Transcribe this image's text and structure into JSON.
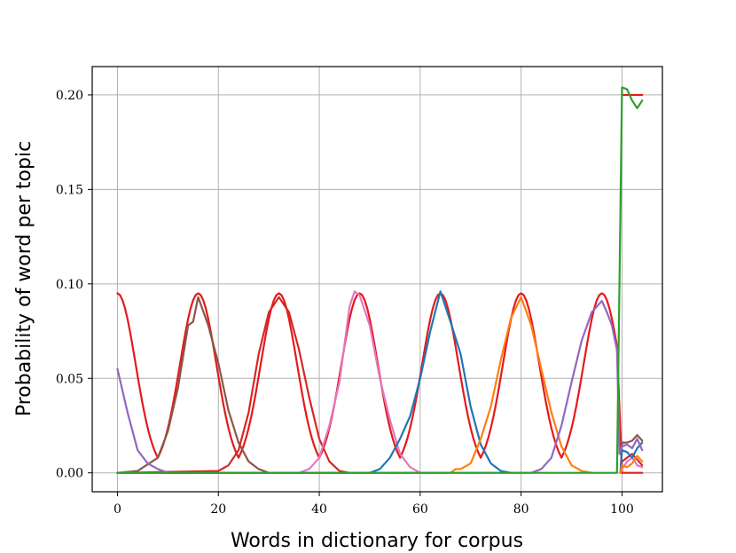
{
  "chart_data": {
    "type": "line",
    "title": "",
    "xlabel": "Words in dictionary for corpus",
    "ylabel": "Probability of word per topic",
    "xlim": [
      -5,
      108
    ],
    "ylim": [
      -0.01,
      0.215
    ],
    "xticks": [
      0,
      20,
      40,
      60,
      80,
      100
    ],
    "xtick_labels": [
      "0",
      "20",
      "40",
      "60",
      "80",
      "100"
    ],
    "yticks": [
      0.0,
      0.05,
      0.1,
      0.15,
      0.2
    ],
    "ytick_labels": [
      "0.00",
      "0.05",
      "0.10",
      "0.15",
      "0.20"
    ],
    "grid": true,
    "legend": "none",
    "x_range": [
      0,
      104
    ],
    "series": [
      {
        "color": "#e41a1c",
        "kind": "true-topic-mixture",
        "centers": [
          0,
          16,
          32,
          48,
          64,
          80,
          96
        ],
        "amplitude": 0.095,
        "sigma": 3.6,
        "tail_value": 0.2,
        "tail_range": [
          100,
          104
        ]
      },
      {
        "color": "#8c564b",
        "kind": "learned-topic",
        "peak_x": 16,
        "peak_y": 0.093,
        "points": [
          [
            0,
            0
          ],
          [
            4,
            0.001
          ],
          [
            8,
            0.008
          ],
          [
            10,
            0.022
          ],
          [
            12,
            0.045
          ],
          [
            14,
            0.078
          ],
          [
            15,
            0.08
          ],
          [
            16,
            0.093
          ],
          [
            18,
            0.078
          ],
          [
            20,
            0.058
          ],
          [
            22,
            0.033
          ],
          [
            24,
            0.016
          ],
          [
            26,
            0.006
          ],
          [
            28,
            0.002
          ],
          [
            30,
            0
          ],
          [
            104,
            0
          ]
        ],
        "tail": [
          [
            100,
            0.016
          ],
          [
            101,
            0.016
          ],
          [
            102,
            0.017
          ],
          [
            103,
            0.02
          ],
          [
            104,
            0.017
          ]
        ]
      },
      {
        "color": "#d62728",
        "kind": "learned-topic",
        "peak_x": 32,
        "peak_y": 0.093,
        "points": [
          [
            0,
            0
          ],
          [
            20,
            0.001
          ],
          [
            22,
            0.004
          ],
          [
            24,
            0.012
          ],
          [
            26,
            0.032
          ],
          [
            28,
            0.063
          ],
          [
            30,
            0.085
          ],
          [
            32,
            0.093
          ],
          [
            34,
            0.085
          ],
          [
            36,
            0.065
          ],
          [
            38,
            0.04
          ],
          [
            40,
            0.018
          ],
          [
            42,
            0.006
          ],
          [
            44,
            0.001
          ],
          [
            46,
            0
          ],
          [
            104,
            0
          ]
        ],
        "tail": [
          [
            100,
            0.006
          ],
          [
            101,
            0.008
          ],
          [
            102,
            0.01
          ],
          [
            103,
            0.007
          ],
          [
            104,
            0.004
          ]
        ]
      },
      {
        "color": "#e377c2",
        "kind": "learned-topic",
        "peak_x": 47,
        "peak_y": 0.096,
        "points": [
          [
            0,
            0
          ],
          [
            36,
            0
          ],
          [
            38,
            0.002
          ],
          [
            40,
            0.008
          ],
          [
            42,
            0.025
          ],
          [
            44,
            0.048
          ],
          [
            46,
            0.088
          ],
          [
            47,
            0.096
          ],
          [
            48,
            0.094
          ],
          [
            50,
            0.078
          ],
          [
            52,
            0.05
          ],
          [
            54,
            0.028
          ],
          [
            56,
            0.01
          ],
          [
            58,
            0.003
          ],
          [
            60,
            0
          ],
          [
            104,
            0
          ]
        ],
        "tail": [
          [
            100,
            0.002
          ],
          [
            101,
            0.006
          ],
          [
            102,
            0.008
          ],
          [
            103,
            0.004
          ],
          [
            104,
            0.003
          ]
        ]
      },
      {
        "color": "#1f77b4",
        "kind": "learned-topic",
        "peak_x": 64,
        "peak_y": 0.096,
        "points": [
          [
            0,
            0
          ],
          [
            50,
            0
          ],
          [
            52,
            0.002
          ],
          [
            54,
            0.008
          ],
          [
            56,
            0.018
          ],
          [
            58,
            0.03
          ],
          [
            60,
            0.05
          ],
          [
            62,
            0.075
          ],
          [
            64,
            0.096
          ],
          [
            66,
            0.08
          ],
          [
            68,
            0.063
          ],
          [
            70,
            0.035
          ],
          [
            72,
            0.015
          ],
          [
            74,
            0.005
          ],
          [
            76,
            0.001
          ],
          [
            78,
            0
          ],
          [
            104,
            0
          ]
        ],
        "tail": [
          [
            100,
            0.012
          ],
          [
            101,
            0.011
          ],
          [
            102,
            0.008
          ],
          [
            103,
            0.013
          ],
          [
            104,
            0.016
          ]
        ]
      },
      {
        "color": "#ff7f0e",
        "kind": "learned-topic",
        "peak_x": 80,
        "peak_y": 0.093,
        "points": [
          [
            0,
            0
          ],
          [
            66,
            0
          ],
          [
            67,
            0.002
          ],
          [
            68,
            0.002
          ],
          [
            70,
            0.005
          ],
          [
            72,
            0.018
          ],
          [
            74,
            0.035
          ],
          [
            76,
            0.06
          ],
          [
            78,
            0.082
          ],
          [
            80,
            0.093
          ],
          [
            82,
            0.078
          ],
          [
            84,
            0.055
          ],
          [
            86,
            0.032
          ],
          [
            88,
            0.014
          ],
          [
            90,
            0.004
          ],
          [
            92,
            0.001
          ],
          [
            94,
            0
          ],
          [
            104,
            0
          ]
        ],
        "tail": [
          [
            100,
            0.004
          ],
          [
            101,
            0.003
          ],
          [
            102,
            0.005
          ],
          [
            103,
            0.009
          ],
          [
            104,
            0.006
          ]
        ]
      },
      {
        "color": "#9467bd",
        "kind": "learned-topic",
        "peak_x": 96,
        "peak_y": 0.091,
        "points": [
          [
            0,
            0.055
          ],
          [
            2,
            0.032
          ],
          [
            4,
            0.012
          ],
          [
            6,
            0.005
          ],
          [
            8,
            0.002
          ],
          [
            10,
            0
          ],
          [
            82,
            0
          ],
          [
            84,
            0.002
          ],
          [
            86,
            0.008
          ],
          [
            88,
            0.025
          ],
          [
            90,
            0.048
          ],
          [
            92,
            0.07
          ],
          [
            94,
            0.085
          ],
          [
            96,
            0.091
          ],
          [
            97,
            0.085
          ],
          [
            98,
            0.078
          ],
          [
            99,
            0.065
          ],
          [
            99.5,
            0.01
          ],
          [
            100,
            0.014
          ],
          [
            101,
            0.015
          ],
          [
            102,
            0.013
          ],
          [
            103,
            0.018
          ],
          [
            104,
            0.012
          ]
        ]
      },
      {
        "color": "#2ca02c",
        "kind": "learned-topic",
        "peak_x": 100,
        "peak_y": 0.204,
        "points": [
          [
            0,
            0
          ],
          [
            98,
            0
          ],
          [
            99,
            0
          ],
          [
            100,
            0.204
          ],
          [
            101,
            0.203
          ],
          [
            102,
            0.197
          ],
          [
            103,
            0.193
          ],
          [
            104,
            0.197
          ]
        ]
      }
    ]
  }
}
